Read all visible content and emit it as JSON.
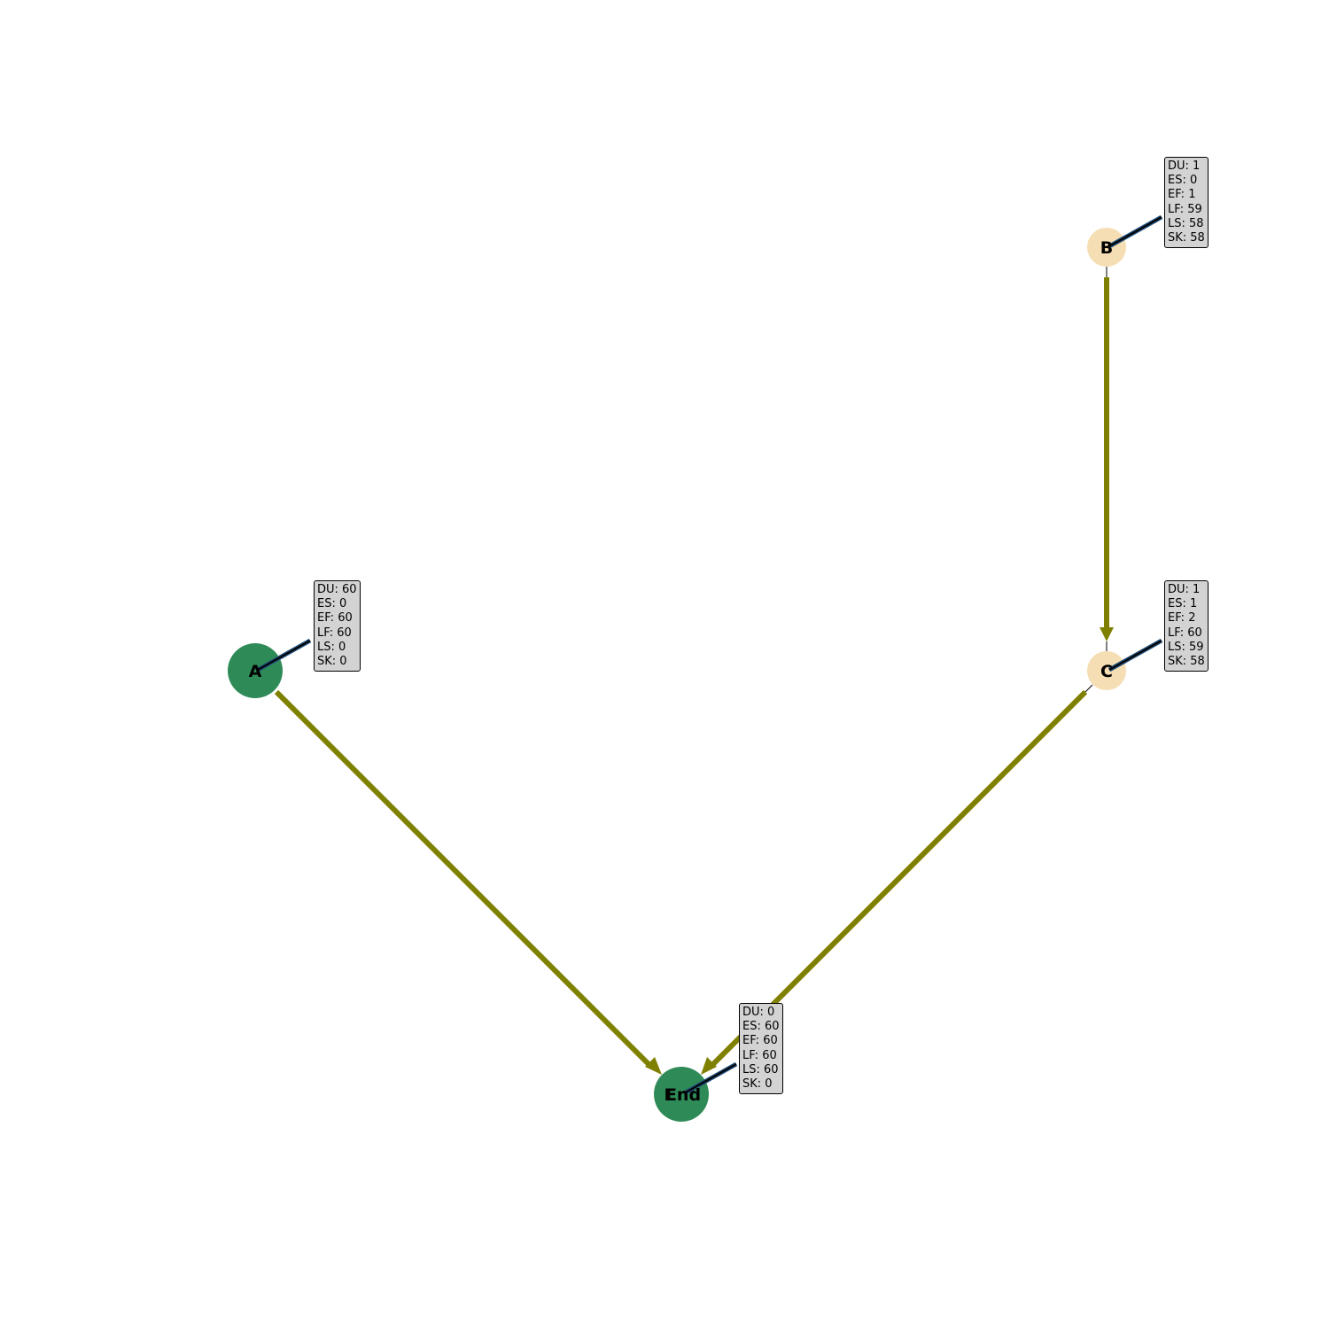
{
  "colors": {
    "critical_node": "#2e8b57",
    "noncritical_node": "#f5deb3",
    "edge": "#808000",
    "box_bg": "#d3d3d3",
    "connector": "#1f4e79"
  },
  "nodes": [
    {
      "id": "A",
      "label": "A",
      "critical": true,
      "info": [
        "DU: 60",
        "ES: 0",
        "EF: 60",
        "LF: 60",
        "LS: 0",
        "SK: 0"
      ]
    },
    {
      "id": "B",
      "label": "B",
      "critical": false,
      "info": [
        "DU: 1",
        "ES: 0",
        "EF: 1",
        "LF: 59",
        "LS: 58",
        "SK: 58"
      ]
    },
    {
      "id": "C",
      "label": "C",
      "critical": false,
      "info": [
        "DU: 1",
        "ES: 1",
        "EF: 2",
        "LF: 60",
        "LS: 59",
        "SK: 58"
      ]
    },
    {
      "id": "End",
      "label": "End",
      "overlay_label": "E",
      "critical": true,
      "info": [
        "DU: 0",
        "ES: 60",
        "EF: 60",
        "LF: 60",
        "LS: 60",
        "SK: 0"
      ]
    }
  ],
  "edges": [
    {
      "from": "B",
      "to": "C"
    },
    {
      "from": "A",
      "to": "End"
    },
    {
      "from": "C",
      "to": "End"
    }
  ]
}
